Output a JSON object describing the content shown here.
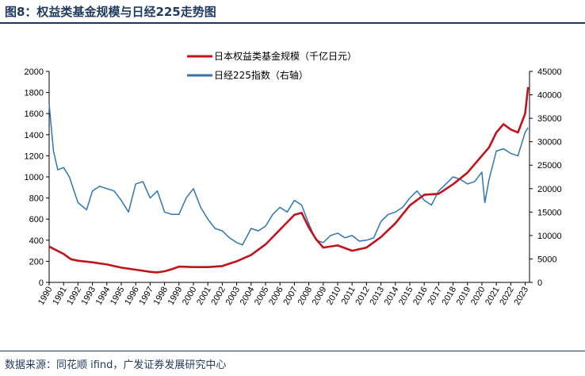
{
  "figure": {
    "title": "图8：权益类基金规模与日经225走势图",
    "source": "数据来源：同花顺 ifind，广发证券发展研究中心"
  },
  "colors": {
    "fund": "#c0131b",
    "nikkei": "#2e75b6",
    "text": "#1f3a5f"
  },
  "chart_data": {
    "type": "line",
    "title": "",
    "xlabel": "",
    "ylabel": "",
    "ylabel_right": "",
    "x_ticks": [
      "1990",
      "1991",
      "1992",
      "1993",
      "1994",
      "1995",
      "1996",
      "1997",
      "1998",
      "1999",
      "2000",
      "2001",
      "2002",
      "2003",
      "2004",
      "2005",
      "2006",
      "2007",
      "2008",
      "2009",
      "2010",
      "2011",
      "2012",
      "2013",
      "2014",
      "2015",
      "2016",
      "2017",
      "2018",
      "2019",
      "2020",
      "2021",
      "2022",
      "2023"
    ],
    "xlim": [
      1990,
      2023.3
    ],
    "ylim_left": [
      0,
      2000
    ],
    "yticks_left": [
      0,
      200,
      400,
      600,
      800,
      1000,
      1200,
      1400,
      1600,
      1800,
      2000
    ],
    "ylim_right": [
      0,
      45000
    ],
    "yticks_right": [
      0,
      5000,
      10000,
      15000,
      20000,
      25000,
      30000,
      35000,
      40000,
      45000
    ],
    "series": [
      {
        "name": "日本权益类基金规模（千亿日元）",
        "axis": "left",
        "x": [
          1990,
          1991,
          1991.5,
          1992,
          1993,
          1994,
          1995,
          1996,
          1997,
          1997.5,
          1998,
          1998.5,
          1999,
          2000,
          2001,
          2002,
          2003,
          2004,
          2005,
          2006,
          2007,
          2007.5,
          2008,
          2008.5,
          2009,
          2010,
          2011,
          2012,
          2013,
          2014,
          2015,
          2016,
          2017,
          2018,
          2019,
          2020,
          2020.5,
          2021,
          2021.5,
          2022,
          2022.5,
          2023,
          2023.2
        ],
        "values": [
          340,
          270,
          220,
          205,
          190,
          170,
          140,
          120,
          100,
          95,
          105,
          125,
          150,
          145,
          145,
          155,
          200,
          260,
          360,
          500,
          640,
          660,
          520,
          410,
          330,
          350,
          300,
          330,
          430,
          560,
          730,
          830,
          840,
          930,
          1040,
          1200,
          1280,
          1420,
          1500,
          1450,
          1420,
          1600,
          1850
        ]
      },
      {
        "name": "日经225指数（右轴）",
        "axis": "right",
        "x": [
          1990,
          1990.3,
          1990.6,
          1991,
          1991.4,
          1992,
          1992.6,
          1993,
          1993.5,
          1994,
          1994.5,
          1995,
          1995.5,
          1996,
          1996.5,
          1997,
          1997.5,
          1998,
          1998.5,
          1999,
          1999.5,
          2000,
          2000.5,
          2001,
          2001.5,
          2002,
          2002.5,
          2003,
          2003.4,
          2004,
          2004.5,
          2005,
          2005.5,
          2006,
          2006.5,
          2007,
          2007.5,
          2008,
          2008.5,
          2009,
          2009.5,
          2010,
          2010.5,
          2011,
          2011.5,
          2012,
          2012.5,
          2013,
          2013.5,
          2014,
          2014.5,
          2015,
          2015.5,
          2016,
          2016.5,
          2017,
          2017.5,
          2018,
          2018.5,
          2019,
          2019.5,
          2020,
          2020.2,
          2020.5,
          2021,
          2021.5,
          2022,
          2022.5,
          2023,
          2023.2
        ],
        "values": [
          38000,
          28000,
          24000,
          24500,
          22500,
          17000,
          15500,
          19500,
          20500,
          20000,
          19500,
          17500,
          15000,
          21000,
          21500,
          18000,
          19500,
          15000,
          14500,
          14500,
          18000,
          20000,
          16000,
          13500,
          11500,
          11000,
          9500,
          8500,
          8000,
          11500,
          11000,
          12000,
          14500,
          16000,
          15000,
          17500,
          16500,
          12500,
          9000,
          8500,
          10000,
          10500,
          9500,
          10000,
          8800,
          9000,
          9500,
          13000,
          14500,
          15000,
          16000,
          18000,
          19500,
          17500,
          16500,
          19500,
          21000,
          22500,
          22000,
          21000,
          21500,
          23500,
          17000,
          22000,
          28000,
          28500,
          27500,
          27000,
          32000,
          33000
        ]
      }
    ],
    "legend": [
      "日本权益类基金规模（千亿日元）",
      "日经225指数（右轴）"
    ],
    "legend_position": "top-center"
  }
}
